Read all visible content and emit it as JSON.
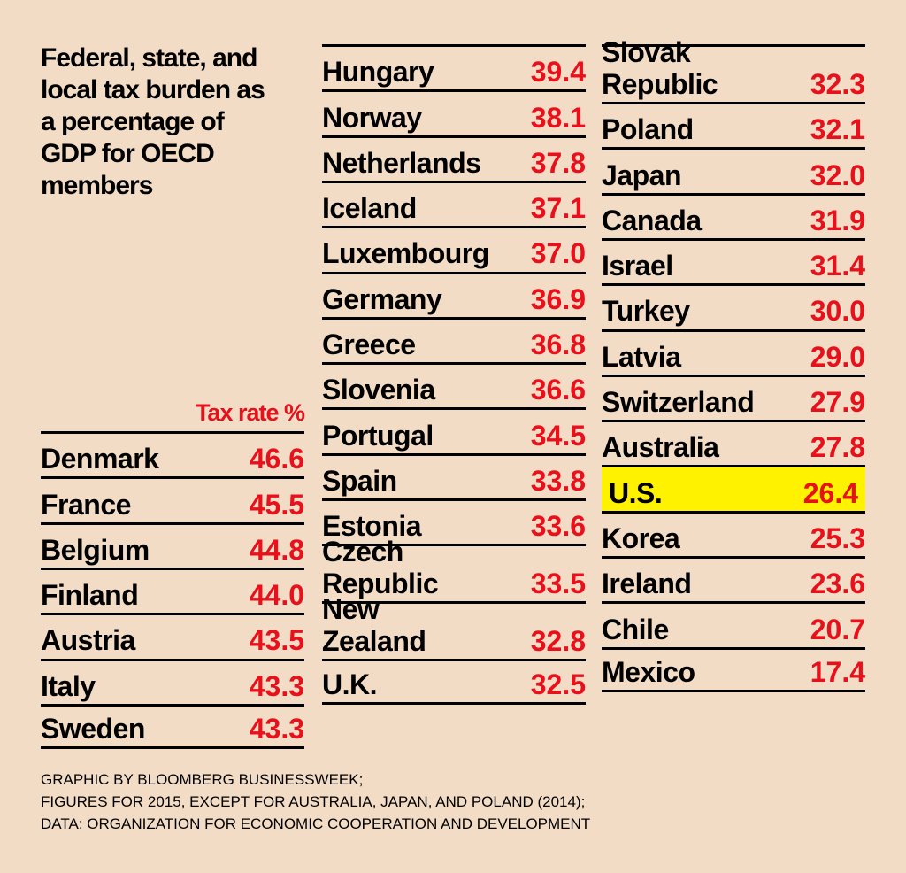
{
  "title": "Federal, state, and local tax burden as a percentage of GDP for OECD members",
  "source_lines": [
    "GRAPHIC BY BLOOMBERG BUSINESSWEEK;",
    "FIGURES FOR 2015, EXCEPT FOR AUSTRALIA, JAPAN, AND POLAND (2014);",
    "DATA: ORGANIZATION FOR ECONOMIC COOPERATION AND DEVELOPMENT"
  ],
  "colors": {
    "background": "#f2dcc5",
    "value": "#e8101b",
    "highlight": "#fff200"
  },
  "chart_data": {
    "type": "table",
    "title": "Federal, state, and local tax burden as a percentage of GDP for OECD members",
    "value_label": "Tax rate %",
    "highlight": "U.S.",
    "columns": [
      [
        {
          "country": "Denmark",
          "value": "46.6"
        },
        {
          "country": "France",
          "value": "45.5"
        },
        {
          "country": "Belgium",
          "value": "44.8"
        },
        {
          "country": "Finland",
          "value": "44.0"
        },
        {
          "country": "Austria",
          "value": "43.5"
        },
        {
          "country": "Italy",
          "value": "43.3"
        },
        {
          "country": "Sweden",
          "value": "43.3"
        }
      ],
      [
        {
          "country": "Hungary",
          "value": "39.4"
        },
        {
          "country": "Norway",
          "value": "38.1"
        },
        {
          "country": "Netherlands",
          "value": "37.8"
        },
        {
          "country": "Iceland",
          "value": "37.1"
        },
        {
          "country": "Luxembourg",
          "value": "37.0"
        },
        {
          "country": "Germany",
          "value": "36.9"
        },
        {
          "country": "Greece",
          "value": "36.8"
        },
        {
          "country": "Slovenia",
          "value": "36.6"
        },
        {
          "country": "Portugal",
          "value": "34.5"
        },
        {
          "country": "Spain",
          "value": "33.8"
        },
        {
          "country": "Estonia",
          "value": "33.6"
        },
        {
          "country": "Czech\nRepublic",
          "value": "33.5"
        },
        {
          "country": "New\nZealand",
          "value": "32.8"
        },
        {
          "country": "U.K.",
          "value": "32.5"
        }
      ],
      [
        {
          "country": "Slovak\nRepublic",
          "value": "32.3"
        },
        {
          "country": "Poland",
          "value": "32.1"
        },
        {
          "country": "Japan",
          "value": "32.0"
        },
        {
          "country": "Canada",
          "value": "31.9"
        },
        {
          "country": "Israel",
          "value": "31.4"
        },
        {
          "country": "Turkey",
          "value": "30.0"
        },
        {
          "country": "Latvia",
          "value": "29.0"
        },
        {
          "country": "Switzerland",
          "value": "27.9"
        },
        {
          "country": "Australia",
          "value": "27.8"
        },
        {
          "country": "U.S.",
          "value": "26.4"
        },
        {
          "country": "Korea",
          "value": "25.3"
        },
        {
          "country": "Ireland",
          "value": "23.6"
        },
        {
          "country": "Chile",
          "value": "20.7"
        },
        {
          "country": "Mexico",
          "value": "17.4"
        }
      ]
    ]
  }
}
